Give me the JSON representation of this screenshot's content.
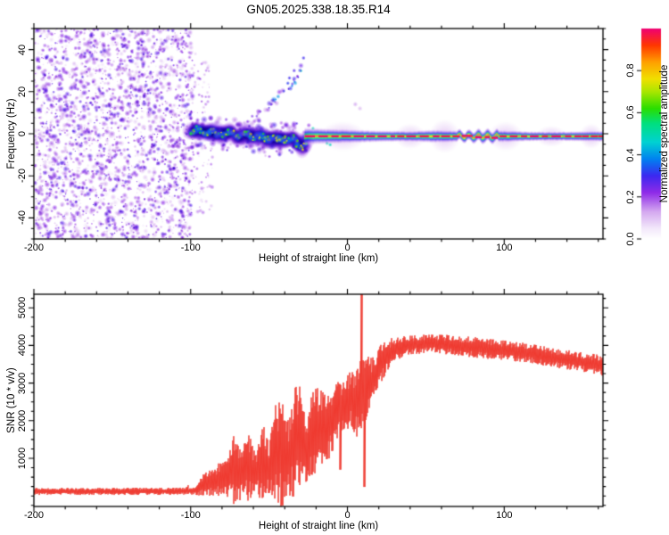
{
  "page_title": "GN05.2025.338.18.35.R14",
  "chart_data": [
    {
      "type": "heatmap",
      "id": "spectrogram",
      "title": "GN05.2025.338.18.35.R14",
      "xlabel": "Height of straight line (km)",
      "ylabel": "Frequency (Hz)",
      "xlim": [
        -200,
        163
      ],
      "ylim": [
        -50,
        50
      ],
      "xticks": [
        -200,
        -100,
        0,
        100
      ],
      "xtick_labels": [
        "-200",
        "-100",
        "0",
        "100"
      ],
      "yticks": [
        -40,
        -20,
        0,
        20,
        40
      ],
      "ytick_labels": [
        "-40",
        "-20",
        "0",
        "20",
        "40"
      ],
      "x_minor_step": 20,
      "y_minor_step": 5,
      "colorbar": {
        "label": "Normalized spectral amplitude",
        "range": [
          0,
          1
        ],
        "ticks": [
          0,
          0.2,
          0.4,
          0.6,
          0.8
        ],
        "tick_labels": [
          "0.0",
          "0.2",
          "0.4",
          "0.6",
          "0.8"
        ],
        "colormap": [
          [
            0.0,
            "#ffffff"
          ],
          [
            0.05,
            "#f3e8fb"
          ],
          [
            0.13,
            "#d4a8f0"
          ],
          [
            0.22,
            "#8f2be8"
          ],
          [
            0.3,
            "#3c28f0"
          ],
          [
            0.38,
            "#0082f0"
          ],
          [
            0.46,
            "#00d2d2"
          ],
          [
            0.55,
            "#00e07d"
          ],
          [
            0.62,
            "#2ade00"
          ],
          [
            0.7,
            "#aae600"
          ],
          [
            0.76,
            "#f0e000"
          ],
          [
            0.84,
            "#ffa000"
          ],
          [
            0.92,
            "#ff3700"
          ],
          [
            1.0,
            "#f00073"
          ]
        ]
      },
      "noise_region": {
        "x_range": [
          -200,
          -100
        ],
        "f_range": [
          -50,
          50
        ],
        "amplitude_range": [
          0.04,
          0.27
        ],
        "blob_count": 2600
      },
      "edge_scatter": {
        "x_range": [
          -100,
          -86
        ],
        "f_ranges": [
          [
            -38,
            -8
          ],
          [
            8,
            38
          ]
        ],
        "count": 90,
        "amplitude_range": [
          0.05,
          0.2
        ]
      },
      "signal_track": [
        [
          -100,
          1,
          0.55,
          5.5
        ],
        [
          -95,
          2,
          0.55,
          5.5
        ],
        [
          -90,
          0,
          0.6,
          5.0
        ],
        [
          -85,
          1,
          0.55,
          5.0
        ],
        [
          -80,
          -1,
          0.6,
          5.5
        ],
        [
          -75,
          1,
          0.6,
          5.0
        ],
        [
          -70,
          -2,
          0.6,
          5.5
        ],
        [
          -65,
          0,
          0.65,
          5.0
        ],
        [
          -60,
          -1.5,
          0.6,
          5.0
        ],
        [
          -55,
          -1,
          0.62,
          5.5
        ],
        [
          -50,
          -3,
          0.65,
          5.0
        ],
        [
          -45,
          -2,
          0.62,
          4.5
        ],
        [
          -40,
          -3,
          0.66,
          4.5
        ],
        [
          -35,
          -2,
          0.7,
          4.0
        ],
        [
          -32,
          -4,
          0.62,
          3.5
        ],
        [
          -29,
          -7,
          0.55,
          3.0
        ],
        [
          -27,
          -4,
          0.6,
          3.0
        ],
        [
          -26,
          -1.5,
          0.8,
          3.0
        ]
      ],
      "line": {
        "x_start": -27,
        "f_center": -1.2,
        "core_amplitude": 0.92,
        "width_profile": [
          [
            -27,
            4.5
          ],
          [
            -15,
            4.0
          ],
          [
            0,
            3.6
          ],
          [
            20,
            3.0
          ],
          [
            40,
            2.8
          ],
          [
            55,
            3.4
          ],
          [
            65,
            3.2
          ],
          [
            75,
            2.8
          ],
          [
            82,
            3.2
          ],
          [
            88,
            3.4
          ],
          [
            95,
            3.2
          ],
          [
            105,
            3.0
          ],
          [
            115,
            2.6
          ],
          [
            130,
            2.4
          ],
          [
            145,
            2.6
          ],
          [
            163,
            2.8
          ]
        ],
        "halo_bulges": [
          [
            -18,
            12,
            7
          ],
          [
            30,
            50,
            6
          ],
          [
            52,
            72,
            8
          ],
          [
            90,
            112,
            7
          ],
          [
            120,
            140,
            5
          ],
          [
            148,
            163,
            6
          ]
        ],
        "wiggle_region": [
          70,
          96
        ]
      },
      "streaks": [
        {
          "x0": -60,
          "f0": 8,
          "x1": -45,
          "f1": 16,
          "amplitude": 0.2,
          "count": 14
        },
        {
          "x0": -48,
          "f0": 14,
          "x1": -33,
          "f1": 26,
          "amplitude": 0.3,
          "count": 14
        },
        {
          "x0": -36,
          "f0": 20,
          "x1": -29,
          "f1": 33,
          "amplitude": 0.34,
          "count": 9
        }
      ],
      "extra_blobs": [
        [
          -13,
          -4.5,
          0.5
        ],
        [
          -11,
          -5.2,
          0.48
        ],
        [
          -22,
          2.5,
          0.5
        ],
        [
          -38,
          24,
          0.32
        ],
        [
          -37,
          26.5,
          0.3
        ],
        [
          -34,
          30,
          0.28
        ],
        [
          -28,
          36,
          0.3
        ],
        [
          5,
          14,
          0.14
        ],
        [
          8,
          12,
          0.12
        ]
      ]
    },
    {
      "type": "line",
      "id": "snr",
      "xlabel": "Height of straight line (km)",
      "ylabel": "SNR (10 * v/v)",
      "xlim": [
        -200,
        163
      ],
      "ylim": [
        -280,
        5360
      ],
      "xticks": [
        -200,
        -100,
        0,
        100
      ],
      "xtick_labels": [
        "-200",
        "-100",
        "0",
        "100"
      ],
      "yticks": [
        1000,
        2000,
        3000,
        4000,
        5000
      ],
      "ytick_labels": [
        "1000",
        "2000",
        "3000",
        "4000",
        "5000"
      ],
      "x_minor_step": 20,
      "y_minor_step": 250,
      "series": [
        {
          "name": "SNR",
          "color": "#ef3b31",
          "profile": [
            [
              -200,
              120,
              95
            ],
            [
              -150,
              120,
              95
            ],
            [
              -110,
              125,
              95
            ],
            [
              -97,
              140,
              110
            ],
            [
              -93,
              260,
              260
            ],
            [
              -88,
              380,
              380
            ],
            [
              -83,
              420,
              420
            ],
            [
              -78,
              520,
              520
            ],
            [
              -72,
              700,
              950
            ],
            [
              -68,
              620,
              750
            ],
            [
              -63,
              820,
              1050
            ],
            [
              -58,
              560,
              480
            ],
            [
              -54,
              900,
              1150
            ],
            [
              -50,
              750,
              650
            ],
            [
              -46,
              1050,
              1350
            ],
            [
              -42,
              1250,
              1700
            ],
            [
              -38,
              950,
              1050
            ],
            [
              -34,
              1450,
              1550
            ],
            [
              -30,
              1550,
              1350
            ],
            [
              -26,
              1250,
              950
            ],
            [
              -22,
              1650,
              1150
            ],
            [
              -18,
              1850,
              1050
            ],
            [
              -14,
              1750,
              1050
            ],
            [
              -10,
              2050,
              950
            ],
            [
              -6,
              2250,
              850
            ],
            [
              -2,
              2450,
              800
            ],
            [
              2,
              2600,
              750
            ],
            [
              6,
              2450,
              900
            ],
            [
              10,
              2900,
              1100
            ],
            [
              14,
              2900,
              750
            ],
            [
              18,
              3250,
              600
            ],
            [
              22,
              3550,
              500
            ],
            [
              26,
              3750,
              420
            ],
            [
              30,
              3900,
              320
            ],
            [
              40,
              4020,
              260
            ],
            [
              55,
              4050,
              260
            ],
            [
              70,
              4000,
              260
            ],
            [
              85,
              3930,
              280
            ],
            [
              100,
              3870,
              260
            ],
            [
              115,
              3800,
              260
            ],
            [
              130,
              3680,
              260
            ],
            [
              145,
              3590,
              260
            ],
            [
              163,
              3470,
              280
            ]
          ],
          "events": [
            [
              9.2,
              5360
            ],
            [
              10.8,
              240
            ],
            [
              -4.5,
              700
            ]
          ]
        }
      ]
    }
  ]
}
